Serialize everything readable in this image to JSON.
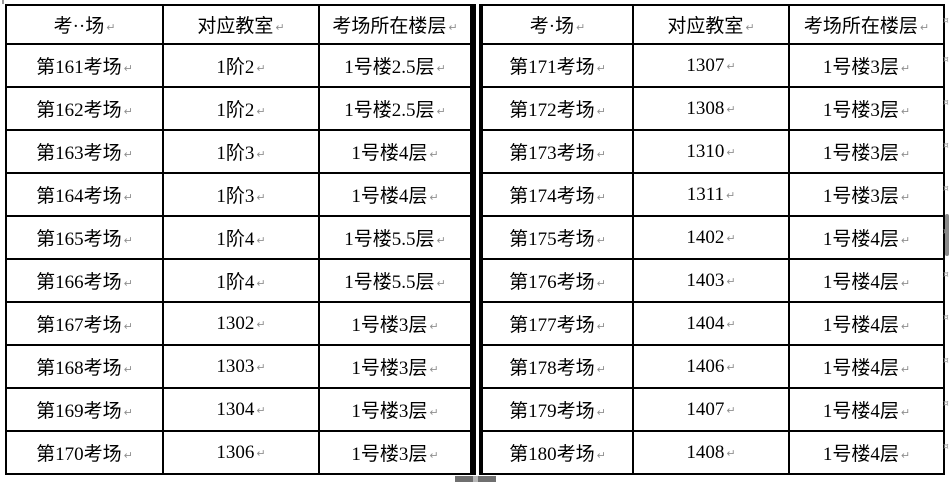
{
  "document": {
    "background": "#ffffff",
    "table_border_color": "#000000"
  },
  "marks": {
    "cell_end": "↵",
    "row_end": "¤",
    "color": "#8f8f8f"
  },
  "tables": [
    {
      "id": "left",
      "headers": [
        "考··场",
        "对应教室",
        "考场所在楼层"
      ],
      "rows": [
        [
          "第161考场",
          "1阶2",
          "1号楼2.5层"
        ],
        [
          "第162考场",
          "1阶2",
          "1号楼2.5层"
        ],
        [
          "第163考场",
          "1阶3",
          "1号楼4层"
        ],
        [
          "第164考场",
          "1阶3",
          "1号楼4层"
        ],
        [
          "第165考场",
          "1阶4",
          "1号楼5.5层"
        ],
        [
          "第166考场",
          "1阶4",
          "1号楼5.5层"
        ],
        [
          "第167考场",
          "1302",
          "1号楼3层"
        ],
        [
          "第168考场",
          "1303",
          "1号楼3层"
        ],
        [
          "第169考场",
          "1304",
          "1号楼3层"
        ],
        [
          "第170考场",
          "1306",
          "1号楼3层"
        ]
      ]
    },
    {
      "id": "right",
      "headers": [
        "考·场",
        "对应教室",
        "考场所在楼层"
      ],
      "rows": [
        [
          "第171考场",
          "1307",
          "1号楼3层"
        ],
        [
          "第172考场",
          "1308",
          "1号楼3层"
        ],
        [
          "第173考场",
          "1310",
          "1号楼3层"
        ],
        [
          "第174考场",
          "1311",
          "1号楼3层"
        ],
        [
          "第175考场",
          "1402",
          "1号楼4层"
        ],
        [
          "第176考场",
          "1403",
          "1号楼4层"
        ],
        [
          "第177考场",
          "1404",
          "1号楼4层"
        ],
        [
          "第178考场",
          "1406",
          "1号楼4层"
        ],
        [
          "第179考场",
          "1407",
          "1号楼4层"
        ],
        [
          "第180考场",
          "1408",
          "1号楼4层"
        ]
      ]
    }
  ],
  "widgets": {
    "scrollbar_thumb_color": "#8a8a8a",
    "resize_handle_color": "#6f6f6f"
  }
}
